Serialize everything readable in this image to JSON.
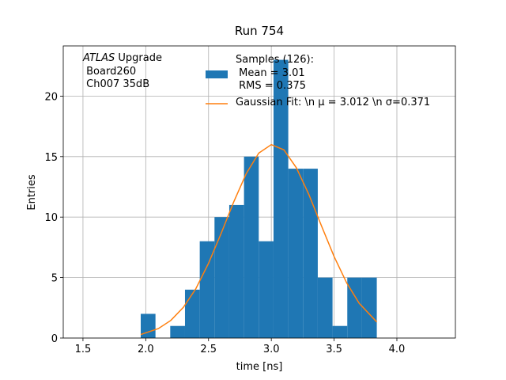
{
  "chart_data": {
    "type": "histogram",
    "title": "Run 754",
    "xlabel": "time [ns]",
    "ylabel": "Entries",
    "annotation": {
      "emphasis": "ATLAS",
      "text": " Upgrade\n Board260\n Ch007 35dB"
    },
    "bins": [
      1.96,
      2.0775,
      2.195,
      2.3125,
      2.43,
      2.5475,
      2.665,
      2.7825,
      2.9,
      3.0175,
      3.135,
      3.2525,
      3.37,
      3.4875,
      3.605,
      3.7225,
      3.84
    ],
    "series": [
      {
        "name": "Samples (126):\n Mean = 3.01\n RMS = 0.375",
        "color": "#1f77b4",
        "values": [
          2,
          0,
          1,
          4,
          8,
          10,
          11,
          15,
          8,
          23,
          14,
          14,
          5,
          1,
          5,
          5
        ]
      }
    ],
    "fit": {
      "type": "line",
      "name": "Gaussian Fit: \\n μ = 3.012 \\n σ=0.371",
      "color": "#ff7f0e",
      "x": [
        1.96,
        2.1,
        2.2,
        2.3,
        2.4,
        2.5,
        2.6,
        2.7,
        2.8,
        2.9,
        3.0,
        3.1,
        3.2,
        3.3,
        3.4,
        3.5,
        3.6,
        3.7,
        3.84
      ],
      "values": [
        0.29,
        0.78,
        1.46,
        2.54,
        4.1,
        6.18,
        8.64,
        11.24,
        13.59,
        15.29,
        15.99,
        15.56,
        14.07,
        11.84,
        9.26,
        6.74,
        4.56,
        2.87,
        1.33
      ]
    },
    "xlim": [
      1.343,
      4.466
    ],
    "ylim": [
      0,
      24.15
    ],
    "xticks": [
      1.5,
      {
        "value": 2,
        "label": "2.0"
      },
      2.5,
      {
        "value": 3,
        "label": "3.0"
      },
      3.5,
      {
        "value": 4,
        "label": "4.0"
      }
    ],
    "yticks": [
      0,
      5,
      10,
      15,
      20
    ],
    "grid": true
  }
}
